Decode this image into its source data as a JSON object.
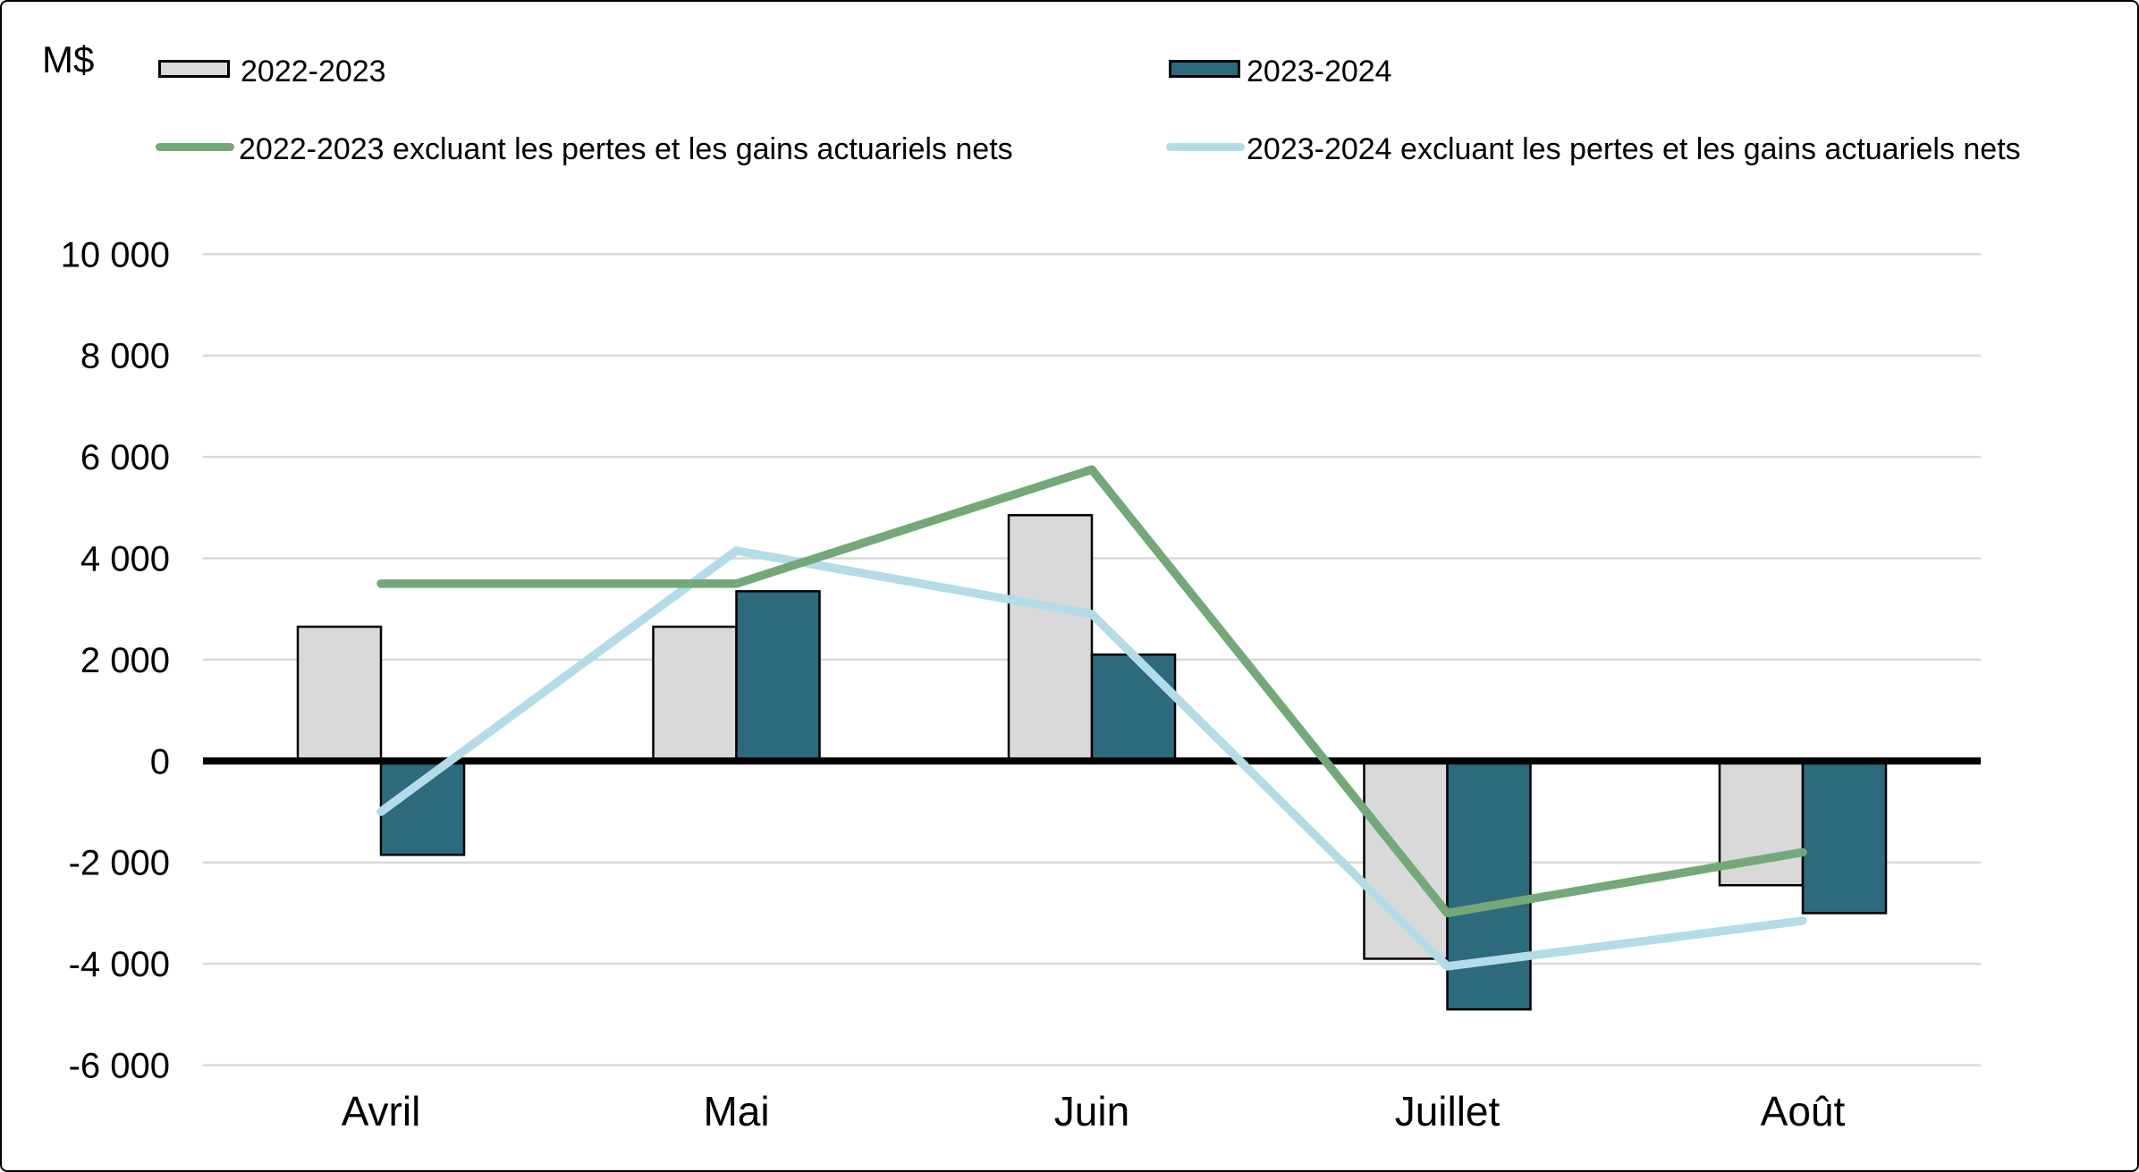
{
  "axis_title": "M$",
  "legend": {
    "items": [
      {
        "label": "2022-2023",
        "type": "bar",
        "color": "#d9d9d9"
      },
      {
        "label": "2023-2024",
        "type": "bar",
        "color": "#2d6a7e"
      },
      {
        "label": "2022-2023 excluant les pertes et les gains actuariels nets",
        "type": "line",
        "color": "#74a878"
      },
      {
        "label": "2023-2024 excluant les pertes et les gains actuariels nets",
        "type": "line",
        "color": "#b4dbe8"
      }
    ]
  },
  "chart_data": {
    "type": "bar",
    "subtype": "grouped-bars-with-line-overlay",
    "categories": [
      "Avril",
      "Mai",
      "Juin",
      "Juillet",
      "Août"
    ],
    "series": [
      {
        "name": "2022-2023",
        "type": "bar",
        "color": "#d9d9d9",
        "values": [
          2650,
          2650,
          4850,
          -3900,
          -2450
        ]
      },
      {
        "name": "2023-2024",
        "type": "bar",
        "color": "#2d6a7e",
        "values": [
          -1850,
          3350,
          2100,
          -4900,
          -3000
        ]
      },
      {
        "name": "2022-2023 excluant les pertes et les gains actuariels nets",
        "type": "line",
        "color": "#74a878",
        "values": [
          3500,
          3500,
          5750,
          -3000,
          -1800
        ]
      },
      {
        "name": "2023-2024 excluant les pertes et les gains actuariels nets",
        "type": "line",
        "color": "#b4dbe8",
        "values": [
          -1000,
          4150,
          2900,
          -4050,
          -3150
        ]
      }
    ],
    "title": "",
    "xlabel": "",
    "ylabel": "M$",
    "ylim": [
      -6000,
      10000
    ],
    "ytick_step": 2000,
    "ytick_labels": [
      "10 000",
      "8 000",
      "6 000",
      "4 000",
      "2 000",
      "0",
      "-2 000",
      "-4 000",
      "-6 000"
    ],
    "grid": true,
    "legend_position": "top",
    "colors": {
      "bar_2022_2023": "#d9d9d9",
      "bar_2023_2024": "#2d6a7e",
      "line_2022_2023_excl": "#74a878",
      "line_2023_2024_excl": "#b4dbe8",
      "gridline": "#d9d9d9",
      "zero_line": "#000000",
      "bar_border": "#000000",
      "text": "#000000"
    }
  }
}
